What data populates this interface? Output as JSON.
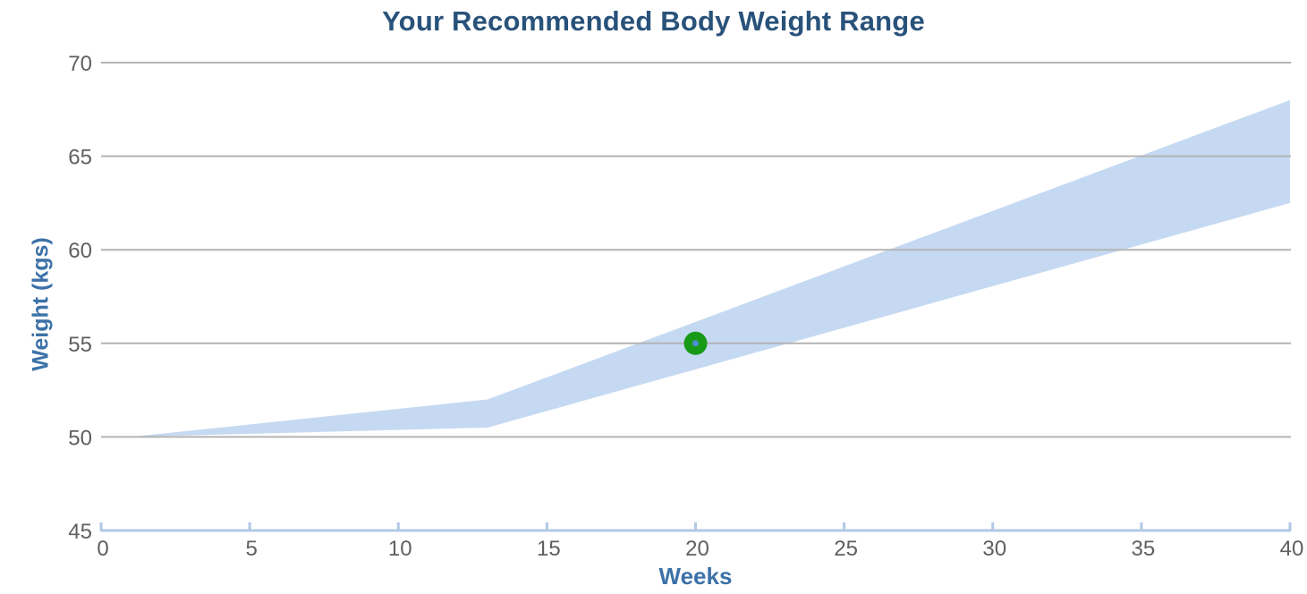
{
  "title": "Your Recommended Body Weight Range",
  "chart_data": {
    "type": "area",
    "title": "Your Recommended Body Weight Range",
    "xlabel": "Weeks",
    "ylabel": "Weight (kgs)",
    "xlim": [
      0,
      40
    ],
    "ylim": [
      45,
      70
    ],
    "x_ticks": [
      0,
      5,
      10,
      15,
      20,
      25,
      30,
      35,
      40
    ],
    "y_ticks": [
      45,
      50,
      55,
      60,
      65,
      70
    ],
    "grid": true,
    "legend": false,
    "series": [
      {
        "name": "recommended-range-upper",
        "x": [
          1,
          13,
          40
        ],
        "values": [
          50,
          52,
          68
        ]
      },
      {
        "name": "recommended-range-lower",
        "x": [
          1,
          13,
          40
        ],
        "values": [
          50,
          50.5,
          62.5
        ]
      }
    ],
    "marker": {
      "name": "current-weight",
      "x": 20,
      "y": 55
    }
  },
  "colors": {
    "title_text": "#29527a",
    "axis_title_text": "#3c72a8",
    "tick_label": "#5f5f5f",
    "gridline": "#b4b4b4",
    "axis_line": "#b1c8e6",
    "band_fill": "#c5d9f2",
    "marker_fill": "#189a18",
    "marker_center": "#4e8dd8",
    "background": "#ffffff"
  }
}
